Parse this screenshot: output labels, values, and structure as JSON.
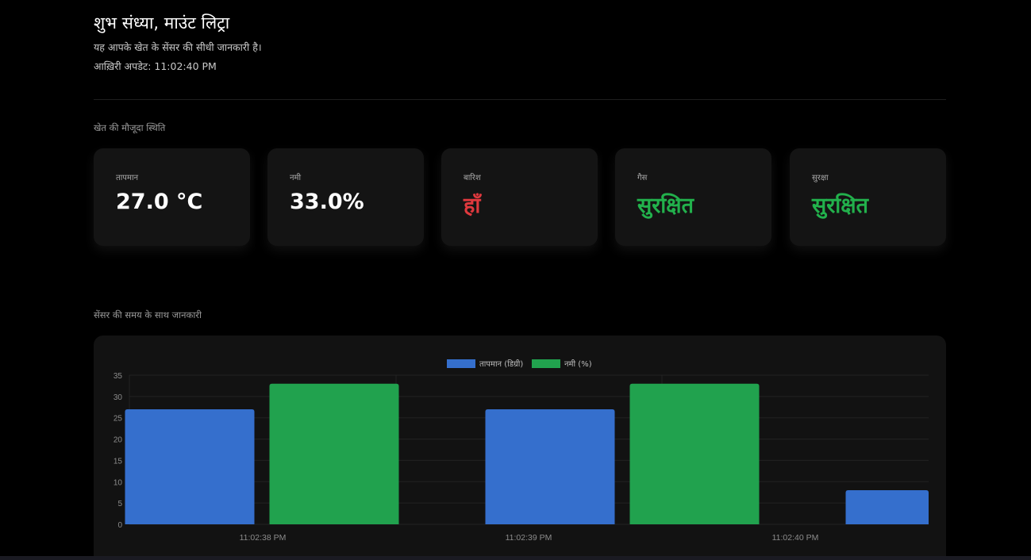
{
  "header": {
    "greeting": "शुभ संध्या, माउंट लिट्रा",
    "subtitle": "यह आपके खेत के सेंसर की सीधी जानकारी है।",
    "updated": "आख़िरी अपडेट: 11:02:40 PM"
  },
  "status_section": {
    "title": "खेत की मौजूदा स्थिति",
    "cards": [
      {
        "label": "तापमान",
        "value": "27.0 °C",
        "tone": "normal"
      },
      {
        "label": "नमी",
        "value": "33.0%",
        "tone": "normal"
      },
      {
        "label": "बारिश",
        "value": "हाँ",
        "tone": "alert"
      },
      {
        "label": "गैस",
        "value": "सुरक्षित",
        "tone": "safe"
      },
      {
        "label": "सुरक्षा",
        "value": "सुरक्षित",
        "tone": "safe"
      }
    ]
  },
  "history_section": {
    "title": "सेंसर की समय के साथ जानकारी"
  },
  "colors": {
    "temperature": "#356fcd",
    "humidity": "#21a24e",
    "alert": "#e0393e",
    "safe": "#22b14c"
  },
  "chart_data": {
    "type": "bar",
    "categories": [
      "11:02:38 PM",
      "11:02:39 PM",
      "11:02:40 PM"
    ],
    "series": [
      {
        "name": "तापमान (डिग्री)",
        "values": [
          27,
          27,
          8
        ]
      },
      {
        "name": "नमी (%)",
        "values": [
          33,
          33,
          null
        ]
      }
    ],
    "ylim": [
      0,
      35
    ],
    "yticks": [
      0,
      5,
      10,
      15,
      20,
      25,
      30,
      35
    ],
    "legend": "top-center",
    "grid": true
  }
}
